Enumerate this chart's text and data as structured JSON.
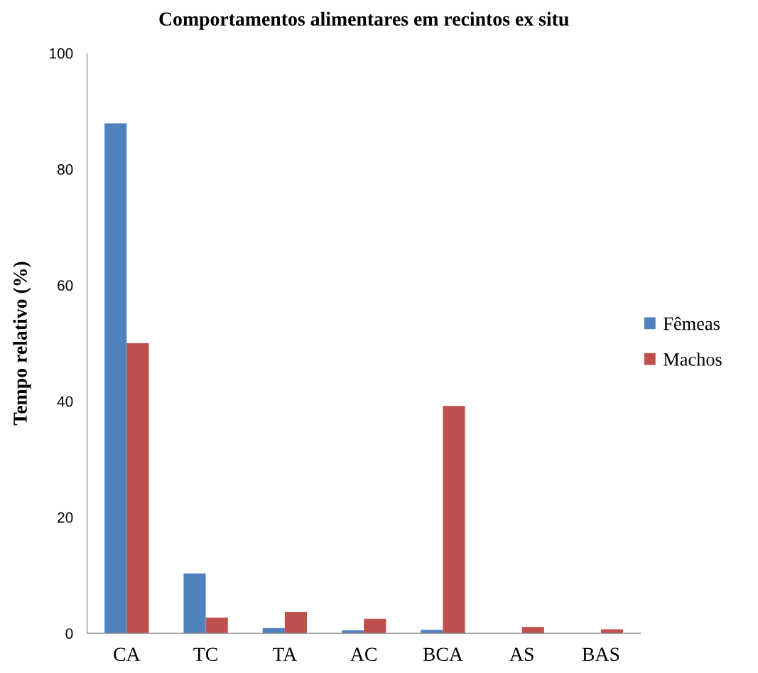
{
  "chart_data": {
    "type": "bar",
    "title": "Comportamentos alimentares em recintos ex situ",
    "ylabel": "Tempo relativo (%)",
    "categories": [
      "CA",
      "TC",
      "TA",
      "AC",
      "BCA",
      "AS",
      "BAS"
    ],
    "series": [
      {
        "name": "Fêmeas",
        "color": "#4f81bd",
        "values": [
          87.9,
          10.3,
          0.9,
          0.5,
          0.6,
          0,
          0
        ]
      },
      {
        "name": "Machos",
        "color": "#c0504d",
        "values": [
          50.0,
          2.7,
          3.7,
          2.5,
          39.2,
          1.1,
          0.7
        ]
      }
    ],
    "ylim": [
      0,
      100
    ],
    "yticks": [
      0,
      20,
      40,
      60,
      80,
      100
    ],
    "grid": false,
    "legend": "right"
  }
}
